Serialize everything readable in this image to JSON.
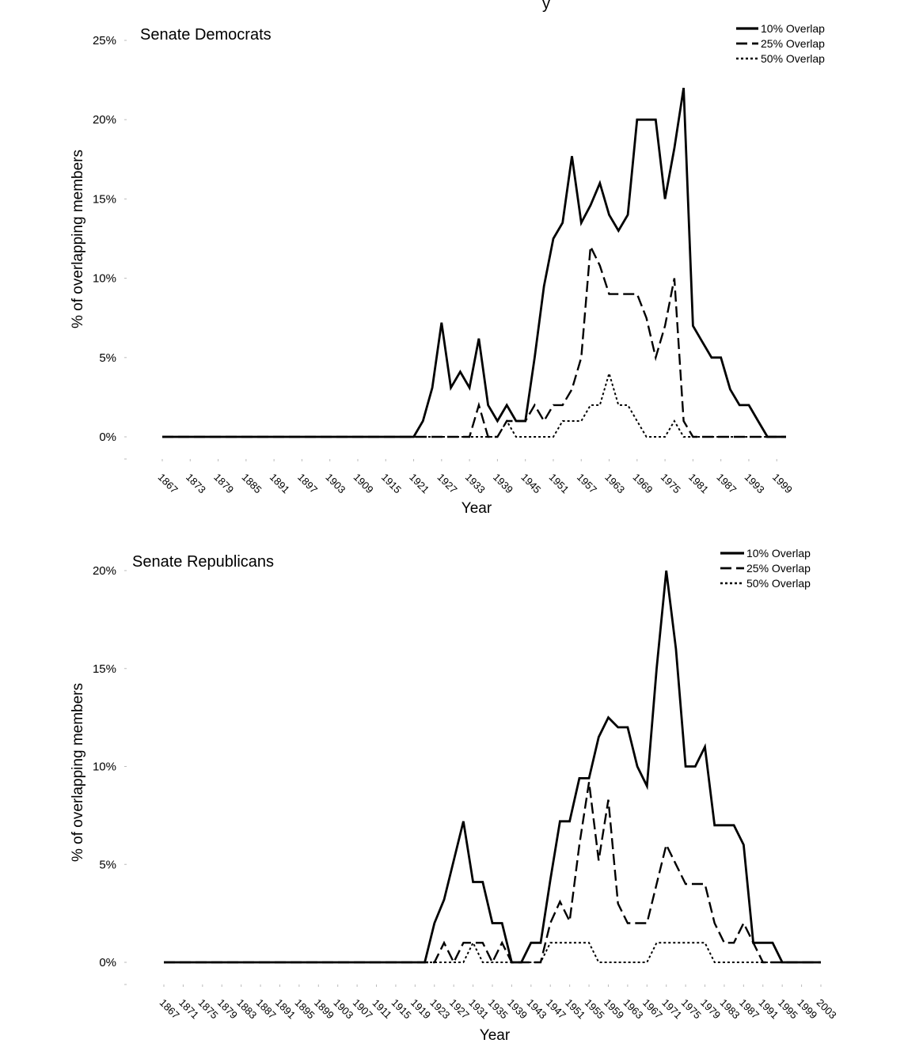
{
  "page": {
    "title_fragment": "y"
  },
  "chart_data": [
    {
      "type": "line",
      "title": "Senate Democrats",
      "xlabel": "Year",
      "ylabel": "% of overlapping members",
      "ylim": [
        0,
        25
      ],
      "yticks": [
        "0%",
        "5%",
        "10%",
        "15%",
        "20%",
        "25%"
      ],
      "xticks": [
        "1867",
        "1873",
        "1879",
        "1885",
        "1891",
        "1897",
        "1903",
        "1909",
        "1915",
        "1921",
        "1927",
        "1933",
        "1939",
        "1945",
        "1951",
        "1957",
        "1963",
        "1969",
        "1975",
        "1981",
        "1987",
        "1993",
        "1999"
      ],
      "x": [
        1867,
        1869,
        1871,
        1873,
        1875,
        1877,
        1879,
        1881,
        1883,
        1885,
        1887,
        1889,
        1891,
        1893,
        1895,
        1897,
        1899,
        1901,
        1903,
        1905,
        1907,
        1909,
        1911,
        1913,
        1915,
        1917,
        1919,
        1921,
        1923,
        1925,
        1927,
        1929,
        1931,
        1933,
        1935,
        1937,
        1939,
        1941,
        1943,
        1945,
        1947,
        1949,
        1951,
        1953,
        1955,
        1957,
        1959,
        1961,
        1963,
        1965,
        1967,
        1969,
        1971,
        1973,
        1975,
        1977,
        1979,
        1981,
        1983,
        1985,
        1987,
        1989,
        1991,
        1993,
        1995,
        1997,
        1999,
        2001
      ],
      "series": [
        {
          "name": "10% Overlap",
          "dash": "solid",
          "values": [
            0,
            0,
            0,
            0,
            0,
            0,
            0,
            0,
            0,
            0,
            0,
            0,
            0,
            0,
            0,
            0,
            0,
            0,
            0,
            0,
            0,
            0,
            0,
            0,
            0,
            0,
            0,
            0,
            1,
            3.1,
            7.2,
            3.1,
            4.1,
            3.1,
            6.2,
            2,
            1,
            2,
            1,
            1,
            5,
            9.5,
            12.5,
            13.5,
            17.7,
            13.5,
            14.6,
            16,
            14,
            13,
            14,
            20,
            20,
            20,
            15,
            18.2,
            22,
            7,
            6,
            5,
            5,
            3,
            2,
            2,
            1,
            0,
            0,
            0
          ]
        },
        {
          "name": "25% Overlap",
          "dash": "dash",
          "values": [
            0,
            0,
            0,
            0,
            0,
            0,
            0,
            0,
            0,
            0,
            0,
            0,
            0,
            0,
            0,
            0,
            0,
            0,
            0,
            0,
            0,
            0,
            0,
            0,
            0,
            0,
            0,
            0,
            0,
            0,
            0,
            0,
            0,
            0,
            2,
            0,
            0,
            1,
            1,
            1,
            2,
            1,
            2,
            2,
            3,
            5,
            12,
            10.8,
            9,
            9,
            9,
            9,
            7.5,
            5,
            7,
            10,
            1,
            0,
            0,
            0,
            0,
            0,
            0,
            0,
            0,
            0,
            0,
            0
          ]
        },
        {
          "name": "50% Overlap",
          "dash": "dot",
          "values": [
            0,
            0,
            0,
            0,
            0,
            0,
            0,
            0,
            0,
            0,
            0,
            0,
            0,
            0,
            0,
            0,
            0,
            0,
            0,
            0,
            0,
            0,
            0,
            0,
            0,
            0,
            0,
            0,
            0,
            0,
            0,
            0,
            0,
            0,
            0,
            0,
            0,
            1,
            0,
            0,
            0,
            0,
            0,
            1,
            1,
            1,
            2,
            2,
            4,
            2,
            2,
            1,
            0,
            0,
            0,
            1,
            0,
            0,
            0,
            0,
            0,
            0,
            0,
            0,
            0,
            0,
            0,
            0
          ]
        }
      ]
    },
    {
      "type": "line",
      "title": "Senate Republicans",
      "xlabel": "Year",
      "ylabel": "% of overlapping members",
      "ylim": [
        0,
        20
      ],
      "yticks": [
        "0%",
        "5%",
        "10%",
        "15%",
        "20%"
      ],
      "xticks": [
        "1867",
        "1871",
        "1875",
        "1879",
        "1883",
        "1887",
        "1891",
        "1895",
        "1899",
        "1903",
        "1907",
        "1911",
        "1915",
        "1919",
        "1923",
        "1927",
        "1931",
        "1935",
        "1939",
        "1943",
        "1947",
        "1951",
        "1955",
        "1959",
        "1963",
        "1967",
        "1971",
        "1975",
        "1979",
        "1983",
        "1987",
        "1991",
        "1995",
        "1999",
        "2003"
      ],
      "x": [
        1867,
        1869,
        1871,
        1873,
        1875,
        1877,
        1879,
        1881,
        1883,
        1885,
        1887,
        1889,
        1891,
        1893,
        1895,
        1897,
        1899,
        1901,
        1903,
        1905,
        1907,
        1909,
        1911,
        1913,
        1915,
        1917,
        1919,
        1921,
        1923,
        1925,
        1927,
        1929,
        1931,
        1933,
        1935,
        1937,
        1939,
        1941,
        1943,
        1945,
        1947,
        1949,
        1951,
        1953,
        1955,
        1957,
        1959,
        1961,
        1963,
        1965,
        1967,
        1969,
        1971,
        1973,
        1975,
        1977,
        1979,
        1981,
        1983,
        1985,
        1987,
        1989,
        1991,
        1993,
        1995,
        1997,
        1999,
        2001,
        2003
      ],
      "series": [
        {
          "name": "10% Overlap",
          "dash": "solid",
          "values": [
            0,
            0,
            0,
            0,
            0,
            0,
            0,
            0,
            0,
            0,
            0,
            0,
            0,
            0,
            0,
            0,
            0,
            0,
            0,
            0,
            0,
            0,
            0,
            0,
            0,
            0,
            0,
            0,
            2,
            3.2,
            5.2,
            7.2,
            4.1,
            4.1,
            2,
            2,
            0,
            0,
            1,
            1,
            4.2,
            7.2,
            7.2,
            9.4,
            9.4,
            11.5,
            12.5,
            12,
            12,
            10,
            9,
            15,
            20,
            16,
            10,
            10,
            11,
            7,
            7,
            7,
            6,
            1,
            1,
            1,
            0,
            0,
            0,
            0,
            0
          ]
        },
        {
          "name": "25% Overlap",
          "dash": "dash",
          "values": [
            0,
            0,
            0,
            0,
            0,
            0,
            0,
            0,
            0,
            0,
            0,
            0,
            0,
            0,
            0,
            0,
            0,
            0,
            0,
            0,
            0,
            0,
            0,
            0,
            0,
            0,
            0,
            0,
            0,
            1,
            0,
            1,
            1,
            1,
            0,
            1,
            0,
            0,
            0,
            0,
            2,
            3.1,
            2.1,
            6,
            9.2,
            5.2,
            8.3,
            3,
            2,
            2,
            2,
            4,
            6,
            5,
            4,
            4,
            4,
            2,
            1,
            1,
            2,
            1,
            0,
            0,
            0,
            0,
            0,
            0,
            0
          ]
        },
        {
          "name": "50% Overlap",
          "dash": "dot",
          "values": [
            0,
            0,
            0,
            0,
            0,
            0,
            0,
            0,
            0,
            0,
            0,
            0,
            0,
            0,
            0,
            0,
            0,
            0,
            0,
            0,
            0,
            0,
            0,
            0,
            0,
            0,
            0,
            0,
            0,
            0,
            0,
            0,
            1,
            0,
            0,
            0,
            0,
            0,
            0,
            0,
            1,
            1,
            1,
            1,
            1,
            0,
            0,
            0,
            0,
            0,
            0,
            1,
            1,
            1,
            1,
            1,
            1,
            0,
            0,
            0,
            0,
            0,
            0,
            0,
            0,
            0,
            0,
            0,
            0
          ]
        }
      ]
    }
  ]
}
